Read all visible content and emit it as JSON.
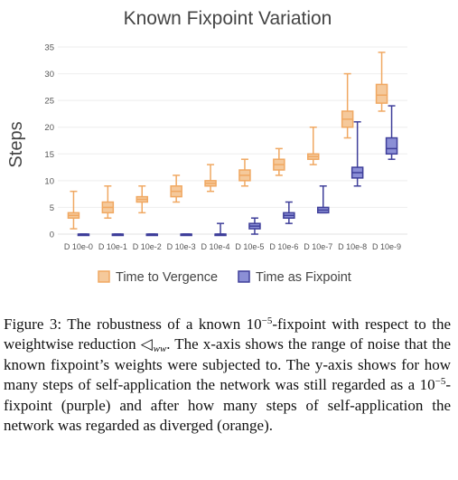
{
  "chart_data": {
    "type": "box",
    "title": "Known Fixpoint Variation",
    "ylabel": "Steps",
    "xlabel": "",
    "ylim": [
      0,
      35
    ],
    "yticks": [
      0,
      5,
      10,
      15,
      20,
      25,
      30,
      35
    ],
    "grid": true,
    "legend_position": "bottom",
    "categories": [
      "D 10e-0",
      "D 10e-1",
      "D 10e-2",
      "D 10e-3",
      "D 10e-4",
      "D 10e-5",
      "D 10e-6",
      "D 10e-7",
      "D 10e-8",
      "D 10e-9"
    ],
    "series": [
      {
        "name": "Time to Vergence",
        "color": "#f5c99b",
        "stroke": "#f0a862",
        "boxes": [
          {
            "min": 1,
            "q1": 3,
            "median": 3.5,
            "q3": 4,
            "max": 8
          },
          {
            "min": 3,
            "q1": 4,
            "median": 5,
            "q3": 6,
            "max": 9
          },
          {
            "min": 4,
            "q1": 6,
            "median": 6.5,
            "q3": 7,
            "max": 9
          },
          {
            "min": 6,
            "q1": 7,
            "median": 8,
            "q3": 9,
            "max": 11
          },
          {
            "min": 8,
            "q1": 9,
            "median": 9.5,
            "q3": 10,
            "max": 13
          },
          {
            "min": 9,
            "q1": 10,
            "median": 11,
            "q3": 12,
            "max": 14
          },
          {
            "min": 11,
            "q1": 12,
            "median": 13,
            "q3": 14,
            "max": 16
          },
          {
            "min": 13,
            "q1": 14,
            "median": 14.5,
            "q3": 15,
            "max": 20
          },
          {
            "min": 18,
            "q1": 20,
            "median": 21.5,
            "q3": 23,
            "max": 30
          },
          {
            "min": 23,
            "q1": 24.5,
            "median": 26,
            "q3": 28,
            "max": 34
          }
        ]
      },
      {
        "name": "Time as Fixpoint",
        "color": "#8b8fd6",
        "stroke": "#3f3f9a",
        "boxes": [
          {
            "min": 0,
            "q1": 0,
            "median": 0,
            "q3": 0,
            "max": 0
          },
          {
            "min": 0,
            "q1": 0,
            "median": 0,
            "q3": 0,
            "max": 0
          },
          {
            "min": 0,
            "q1": 0,
            "median": 0,
            "q3": 0,
            "max": 0
          },
          {
            "min": 0,
            "q1": 0,
            "median": 0,
            "q3": 0,
            "max": 0
          },
          {
            "min": 0,
            "q1": 0,
            "median": 0,
            "q3": 0,
            "max": 2
          },
          {
            "min": 0,
            "q1": 1,
            "median": 1.5,
            "q3": 2,
            "max": 3
          },
          {
            "min": 2,
            "q1": 3,
            "median": 3.5,
            "q3": 4,
            "max": 6
          },
          {
            "min": 4,
            "q1": 4,
            "median": 4.5,
            "q3": 5,
            "max": 9
          },
          {
            "min": 9,
            "q1": 10.5,
            "median": 11.5,
            "q3": 12.5,
            "max": 21
          },
          {
            "min": 14,
            "q1": 15,
            "median": 16,
            "q3": 18,
            "max": 24
          }
        ]
      }
    ]
  },
  "caption": {
    "label": "Figure 3:",
    "part1": " The robustness of a known 10",
    "exp1": "−5",
    "part2": "-fixpoint with respect to the weightwise reduction ◁",
    "sub1": "ww",
    "part3": ". The x-axis shows the range of noise that the known fixpoint’s weights were subjected to. The y-axis shows for how many steps of self-application the network was still regarded as a 10",
    "exp2": "−5",
    "part4": "-fixpoint (purple) and after how many steps of self-application the network was regarded as diverged (orange)."
  }
}
